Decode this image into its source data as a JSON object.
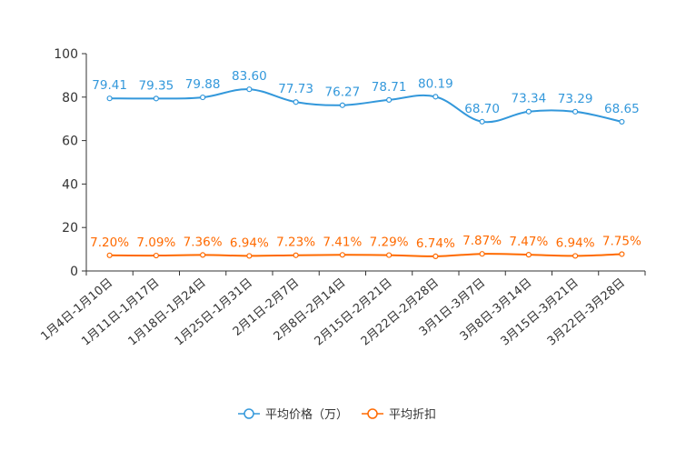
{
  "chart_data": {
    "type": "line",
    "title": "",
    "xlabel": "",
    "ylabel": "",
    "ylim": [
      0,
      100
    ],
    "yticks": [
      0,
      20,
      40,
      60,
      80,
      100
    ],
    "categories": [
      "1月4日-1月10日",
      "1月11日-1月17日",
      "1月18日-1月24日",
      "1月25日-1月31日",
      "2月1日-2月7日",
      "2月8日-2月14日",
      "2月15日-2月21日",
      "2月22日-2月28日",
      "3月1日-3月7日",
      "3月8日-3月14日",
      "3月15日-3月21日",
      "3月22日-3月28日"
    ],
    "series": [
      {
        "name": "平均价格（万）",
        "color": "#3398db",
        "values": [
          79.41,
          79.35,
          79.88,
          83.6,
          77.73,
          76.27,
          78.71,
          80.19,
          68.7,
          73.34,
          73.29,
          68.65
        ],
        "labels": [
          "79.41",
          "79.35",
          "79.88",
          "83.60",
          "77.73",
          "76.27",
          "78.71",
          "80.19",
          "68.70",
          "73.34",
          "73.29",
          "68.65"
        ]
      },
      {
        "name": "平均折扣",
        "color": "#ff6a00",
        "values": [
          7.2,
          7.09,
          7.36,
          6.94,
          7.23,
          7.41,
          7.29,
          6.74,
          7.87,
          7.47,
          6.94,
          7.75
        ],
        "labels": [
          "7.20%",
          "7.09%",
          "7.36%",
          "6.94%",
          "7.23%",
          "7.41%",
          "7.29%",
          "6.74%",
          "7.87%",
          "7.47%",
          "6.94%",
          "7.75%"
        ]
      }
    ],
    "legend": "bottom-center",
    "grid": false
  }
}
